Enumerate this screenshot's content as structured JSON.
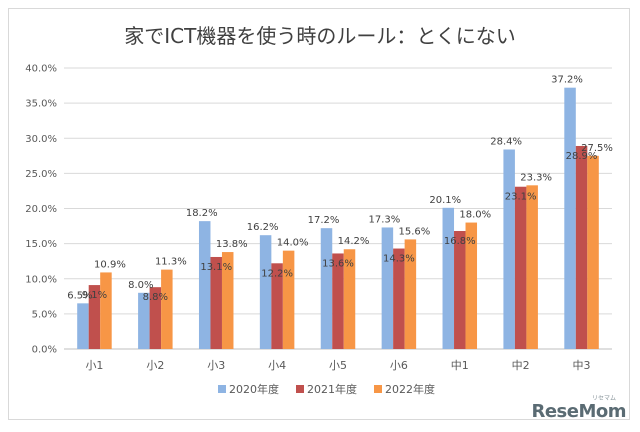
{
  "chart_data": {
    "type": "bar",
    "title": "家でICT機器を使う時のルール：とくにない",
    "categories": [
      "小1",
      "小2",
      "小3",
      "小4",
      "小5",
      "小6",
      "中1",
      "中2",
      "中3"
    ],
    "series": [
      {
        "name": "2020年度",
        "color": "#8eb4e3",
        "values": [
          6.5,
          8.0,
          18.2,
          16.2,
          17.2,
          17.3,
          20.1,
          28.4,
          37.2
        ]
      },
      {
        "name": "2021年度",
        "color": "#c0504d",
        "values": [
          9.1,
          8.8,
          13.1,
          12.2,
          13.6,
          14.3,
          16.8,
          23.1,
          28.9
        ]
      },
      {
        "name": "2022年度",
        "color": "#f79646",
        "values": [
          10.9,
          11.3,
          13.8,
          14.0,
          14.2,
          15.6,
          18.0,
          23.3,
          27.5
        ]
      }
    ],
    "ylim": [
      0,
      40
    ],
    "yticks": [
      "0.0%",
      "5.0%",
      "10.0%",
      "15.0%",
      "20.0%",
      "25.0%",
      "30.0%",
      "35.0%",
      "40.0%"
    ],
    "ystep": 5,
    "grid": true,
    "legend": "bottom",
    "xlabel": "",
    "ylabel": ""
  },
  "watermark": {
    "text": "ReseMom",
    "sub": "リセマム"
  }
}
